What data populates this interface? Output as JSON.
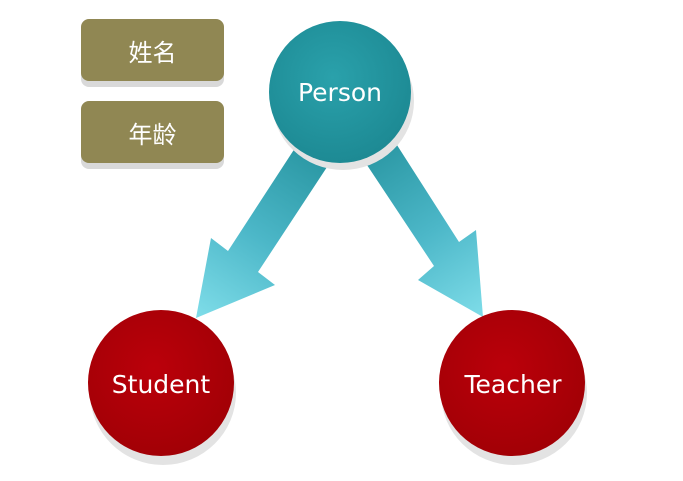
{
  "attributes": {
    "name_label": "姓名",
    "age_label": "年龄",
    "color": "#908753"
  },
  "nodes": {
    "parent": {
      "label": "Person",
      "color": "#23949e"
    },
    "child_left": {
      "label": "Student",
      "color": "#af0008"
    },
    "child_right": {
      "label": "Teacher",
      "color": "#af0008"
    }
  },
  "edges": [
    {
      "from": "Person",
      "to": "Student",
      "style": "arrow",
      "color": "#5bc3d6"
    },
    {
      "from": "Person",
      "to": "Teacher",
      "style": "arrow",
      "color": "#5bc3d6"
    }
  ]
}
